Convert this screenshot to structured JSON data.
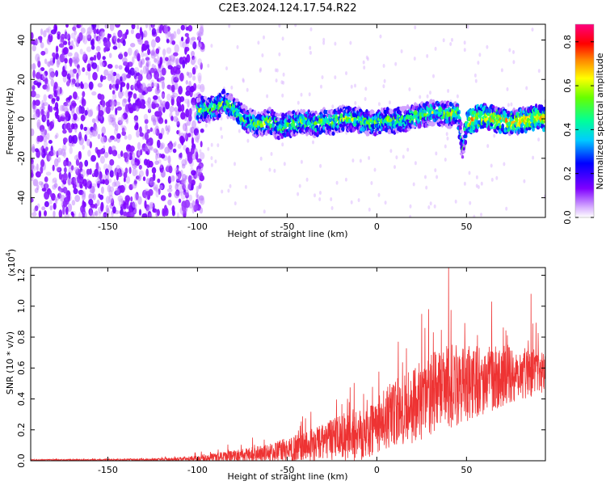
{
  "figure": {
    "title": "C2E3.2024.124.17.54.R22"
  },
  "chart_data": [
    {
      "type": "heatmap",
      "xlabel": "Height of straight line (km)",
      "ylabel": "Frequency (Hz)",
      "xlim": [
        -193,
        94
      ],
      "ylim": [
        -50,
        48
      ],
      "xticks": [
        -150,
        -100,
        -50,
        0,
        50
      ],
      "yticks": [
        -40,
        -20,
        0,
        20,
        40
      ],
      "colorbar": {
        "label": "Normalized spectral amplitude",
        "range": [
          0,
          0.88
        ],
        "ticks": [
          "0.0",
          "0.2",
          "0.4",
          "0.6",
          "0.8"
        ],
        "colormap": "white-purple-blue-cyan-green-yellow-red-magenta"
      },
      "noise_region_x": [
        -193,
        -100
      ],
      "signal_ridge": {
        "x": [
          -100,
          -95,
          -90,
          -85,
          -80,
          -75,
          -70,
          -65,
          -60,
          -55,
          -50,
          -45,
          -40,
          -35,
          -30,
          -25,
          -20,
          -15,
          -10,
          -5,
          0,
          5,
          10,
          15,
          20,
          25,
          30,
          35,
          40,
          45,
          48,
          50,
          55,
          60,
          65,
          70,
          75,
          80,
          85,
          90,
          94
        ],
        "frequency_hz": [
          4,
          5,
          6,
          8,
          5,
          1,
          -2,
          -3,
          -1,
          -4,
          -3,
          -2,
          -1,
          -3,
          -1,
          -2,
          0,
          0,
          -1,
          -2,
          -2,
          0,
          -1,
          0,
          1,
          2,
          3,
          3,
          2,
          3,
          -15,
          -2,
          0,
          1,
          0,
          -1,
          -2,
          -1,
          0,
          1,
          0
        ]
      },
      "grid": false
    },
    {
      "type": "line",
      "xlabel": "Height of straight line (km)",
      "ylabel": "SNR (10 * v/v)",
      "multiplier_label": "(x10",
      "multiplier_exponent": "4",
      "multiplier_close": ")",
      "xlim": [
        -193,
        94
      ],
      "ylim": [
        0,
        1.25
      ],
      "xticks": [
        -150,
        -100,
        -50,
        0,
        50
      ],
      "yticks": [
        "0.0",
        "0.2",
        "0.4",
        "0.6",
        "0.8",
        "1.0",
        "1.2"
      ],
      "series": [
        {
          "color": "#ee3333",
          "x": [
            -193,
            -150,
            -120,
            -100,
            -90,
            -80,
            -70,
            -60,
            -50,
            -40,
            -30,
            -20,
            -10,
            0,
            10,
            20,
            30,
            40,
            50,
            60,
            70,
            80,
            90,
            94
          ],
          "y_mean": [
            0.005,
            0.006,
            0.008,
            0.012,
            0.02,
            0.03,
            0.04,
            0.05,
            0.07,
            0.09,
            0.12,
            0.15,
            0.18,
            0.24,
            0.3,
            0.36,
            0.42,
            0.48,
            0.5,
            0.52,
            0.55,
            0.57,
            0.58,
            0.6
          ],
          "y_spread": [
            0.004,
            0.005,
            0.008,
            0.02,
            0.03,
            0.04,
            0.05,
            0.06,
            0.08,
            0.1,
            0.12,
            0.15,
            0.18,
            0.2,
            0.22,
            0.25,
            0.27,
            0.28,
            0.25,
            0.22,
            0.2,
            0.18,
            0.15,
            0.15
          ],
          "peaks": [
            {
              "x": 40,
              "y": 1.25
            },
            {
              "x": 86,
              "y": 1.08
            },
            {
              "x": 64,
              "y": 1.03
            },
            {
              "x": 25,
              "y": 0.95
            },
            {
              "x": 12,
              "y": 0.77
            }
          ]
        }
      ],
      "grid": false
    }
  ]
}
